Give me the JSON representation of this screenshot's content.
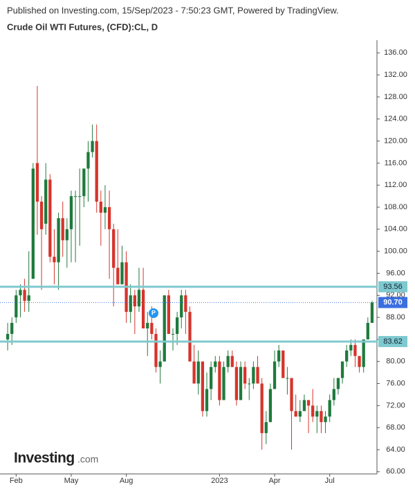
{
  "chart_data": {
    "type": "candlestick",
    "subtitle": "Published on Investing.com, 15/Sep/2023 - 7:50:23 GMT, Powered by TradingView.",
    "title": "Crude Oil WTI Futures, (CFD):CL, D",
    "categories": [
      null,
      null,
      "Feb",
      null,
      null,
      null,
      null,
      null,
      null,
      null,
      null,
      null,
      null,
      null,
      null,
      "May",
      null,
      null,
      null,
      null,
      null,
      null,
      null,
      null,
      null,
      null,
      null,
      null,
      "Aug",
      null,
      null,
      null,
      null,
      null,
      null,
      null,
      null,
      null,
      null,
      null,
      null,
      null,
      null,
      null,
      null,
      null,
      null,
      null,
      null,
      null,
      "2023",
      null,
      null,
      null,
      null,
      null,
      null,
      null,
      null,
      null,
      null,
      null,
      null,
      "Apr",
      null,
      null,
      null,
      null,
      null,
      null,
      null,
      null,
      null,
      null,
      null,
      null,
      "Jul",
      null,
      null,
      null,
      null,
      null,
      null,
      null,
      null,
      null,
      null
    ],
    "open": [
      84,
      85,
      88,
      92,
      93,
      91,
      95,
      116,
      109,
      105,
      113,
      99,
      98,
      106,
      102,
      104,
      110,
      110,
      110,
      115,
      118,
      120,
      109,
      107,
      108,
      104,
      97,
      94,
      98,
      89,
      92,
      90,
      93,
      86,
      87,
      85,
      79,
      80,
      92,
      85,
      85,
      88,
      92,
      89,
      80,
      76,
      80,
      71,
      75,
      79,
      80,
      73,
      79,
      81,
      79,
      73,
      79,
      76,
      76,
      79,
      76,
      67,
      69,
      75,
      80,
      82,
      77,
      77,
      71,
      70,
      71,
      73,
      72,
      70,
      71,
      69,
      70,
      73,
      75,
      77,
      80,
      82,
      83,
      81,
      79,
      84,
      87
    ],
    "high": [
      87,
      88,
      93,
      94,
      95,
      100,
      116,
      130,
      110,
      116,
      114,
      104,
      107,
      109,
      106,
      111,
      111,
      115,
      115,
      120,
      123,
      123,
      111,
      112,
      111,
      105,
      104,
      101,
      100,
      94,
      93,
      97,
      97,
      89,
      90,
      86,
      82,
      92,
      93,
      86,
      89,
      93,
      93,
      90,
      83,
      82,
      80,
      78,
      80,
      81,
      81,
      80,
      82,
      82,
      80,
      80,
      80,
      77,
      80,
      81,
      77,
      71,
      76,
      82,
      83,
      82,
      79,
      77,
      74,
      73,
      74,
      73,
      75,
      72,
      72,
      71,
      74,
      77,
      77,
      80,
      83,
      84,
      84,
      81,
      84,
      88,
      91
    ],
    "low": [
      82,
      83,
      87,
      88,
      89,
      89,
      95,
      103,
      93,
      103,
      98,
      94,
      93,
      99,
      97,
      98,
      98,
      101,
      108,
      109,
      117,
      107,
      101,
      104,
      95,
      90,
      94,
      94,
      87,
      87,
      85,
      89,
      86,
      81,
      84,
      78,
      76,
      80,
      85,
      82,
      83,
      86,
      85,
      80,
      76,
      74,
      70,
      70,
      73,
      78,
      72,
      73,
      78,
      79,
      72,
      73,
      75,
      73,
      75,
      76,
      64,
      65,
      69,
      75,
      79,
      77,
      74,
      64,
      70,
      69,
      71,
      67,
      69,
      67,
      67,
      67,
      69,
      72,
      74,
      76,
      79,
      81,
      79,
      78,
      78,
      84,
      87
    ],
    "close": [
      85,
      87,
      92,
      93,
      91,
      92,
      115,
      109,
      104,
      113,
      99,
      98,
      106,
      102,
      104,
      110,
      110,
      110,
      115,
      118,
      120,
      109,
      107,
      108,
      104,
      97,
      94,
      98,
      89,
      92,
      90,
      93,
      86,
      87,
      85,
      79,
      80,
      92,
      85,
      85,
      88,
      92,
      89,
      80,
      76,
      80,
      71,
      75,
      79,
      80,
      73,
      79,
      81,
      79,
      73,
      79,
      76,
      76,
      79,
      76,
      67,
      69,
      75,
      80,
      82,
      77,
      77,
      71,
      70,
      71,
      73,
      72,
      70,
      71,
      69,
      70,
      73,
      75,
      77,
      80,
      82,
      83,
      81,
      79,
      84,
      87,
      90.7
    ],
    "up_color": "#1f7a3c",
    "down_color": "#d6342c",
    "ylim": [
      59.6,
      138.3
    ],
    "yticks": [
      {
        "value": 60,
        "label": "60.00"
      },
      {
        "value": 64,
        "label": "64.00"
      },
      {
        "value": 68,
        "label": "68.00"
      },
      {
        "value": 72,
        "label": "72.00"
      },
      {
        "value": 76,
        "label": "76.00"
      },
      {
        "value": 80,
        "label": "80.00"
      },
      {
        "value": 84,
        "label": "84.00"
      },
      {
        "value": 88,
        "label": "88.00"
      },
      {
        "value": 92,
        "label": "92.00"
      },
      {
        "value": 96,
        "label": "96.00"
      },
      {
        "value": 100,
        "label": "100.00"
      },
      {
        "value": 104,
        "label": "104.00"
      },
      {
        "value": 108,
        "label": "108.00"
      },
      {
        "value": 112,
        "label": "112.00"
      },
      {
        "value": 116,
        "label": "116.00"
      },
      {
        "value": 120,
        "label": "120.00"
      },
      {
        "value": 124,
        "label": "124.00"
      },
      {
        "value": 128,
        "label": "128.00"
      },
      {
        "value": 132,
        "label": "132.00"
      },
      {
        "value": 136,
        "label": "136.00"
      }
    ],
    "levels": [
      93.56,
      83.62
    ],
    "level_color": "#7ec9cf",
    "last_price": {
      "value": 90.7,
      "label": "90.70"
    },
    "last_price_color": "#3b6fe0",
    "marker_label": "P",
    "logo": [
      "Investing",
      ".com"
    ]
  }
}
